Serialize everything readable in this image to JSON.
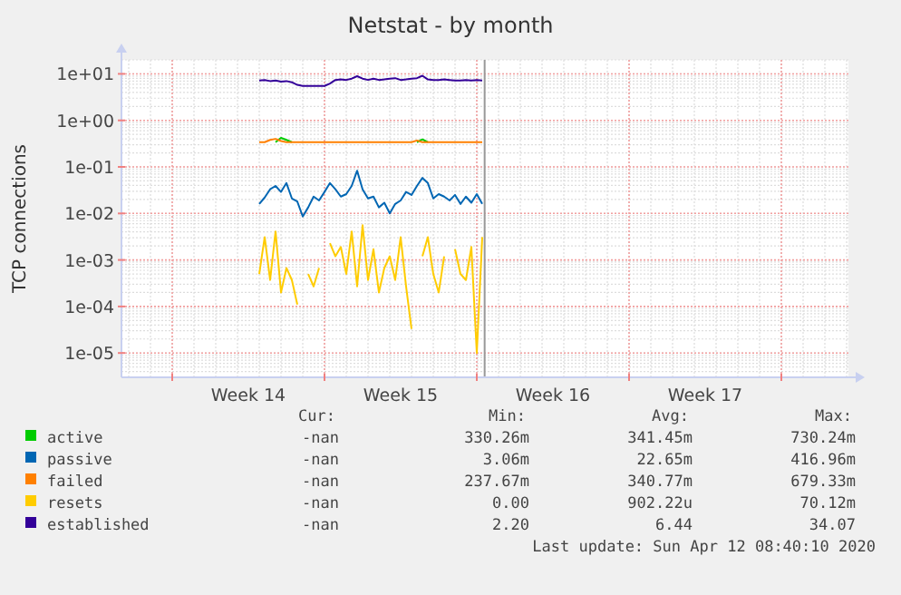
{
  "chart_data": {
    "type": "line",
    "title": "Netstat - by month",
    "ylabel": "TCP connections",
    "log": true,
    "grid": true,
    "legend": "bottom",
    "xlim": [
      "2020-03-26T16:00",
      "2020-04-29T02:00"
    ],
    "xticks": [
      {
        "value": "2020-03-29",
        "label": null
      },
      {
        "value": "2020-04-01T12:00",
        "label": "Week 14"
      },
      {
        "value": "2020-04-05",
        "label": null
      },
      {
        "value": "2020-04-08T12:00",
        "label": "Week 15"
      },
      {
        "value": "2020-04-12",
        "label": null
      },
      {
        "value": "2020-04-15T12:00",
        "label": "Week 16"
      },
      {
        "value": "2020-04-19",
        "label": null
      },
      {
        "value": "2020-04-22T12:00",
        "label": "Week 17"
      },
      {
        "value": "2020-04-26",
        "label": null
      }
    ],
    "ylim": [
      3e-06,
      20
    ],
    "yticks": [
      {
        "value": 10,
        "label": "1e+01"
      },
      {
        "value": 1,
        "label": "1e+00"
      },
      {
        "value": 0.1,
        "label": "1e-01"
      },
      {
        "value": 0.01,
        "label": "1e-02"
      },
      {
        "value": 0.001,
        "label": "1e-03"
      },
      {
        "value": 0.0001,
        "label": "1e-04"
      },
      {
        "value": 1e-05,
        "label": "1e-05"
      }
    ],
    "ref_lines": [
      {
        "axis": "x",
        "value": "2020-04-12T08:40",
        "color": "#999999"
      }
    ],
    "x": [
      "2020-04-02T00:00",
      "2020-04-02T06:00",
      "2020-04-02T12:00",
      "2020-04-02T18:00",
      "2020-04-03T00:00",
      "2020-04-03T06:00",
      "2020-04-03T12:00",
      "2020-04-03T18:00",
      "2020-04-04T00:00",
      "2020-04-04T06:00",
      "2020-04-04T12:00",
      "2020-04-04T18:00",
      "2020-04-05T00:00",
      "2020-04-05T06:00",
      "2020-04-05T12:00",
      "2020-04-05T18:00",
      "2020-04-06T00:00",
      "2020-04-06T06:00",
      "2020-04-06T12:00",
      "2020-04-06T18:00",
      "2020-04-07T00:00",
      "2020-04-07T06:00",
      "2020-04-07T12:00",
      "2020-04-07T18:00",
      "2020-04-08T00:00",
      "2020-04-08T06:00",
      "2020-04-08T12:00",
      "2020-04-08T18:00",
      "2020-04-09T00:00",
      "2020-04-09T06:00",
      "2020-04-09T12:00",
      "2020-04-09T18:00",
      "2020-04-10T00:00",
      "2020-04-10T06:00",
      "2020-04-10T12:00",
      "2020-04-10T18:00",
      "2020-04-11T00:00",
      "2020-04-11T06:00",
      "2020-04-11T12:00",
      "2020-04-11T18:00",
      "2020-04-12T00:00",
      "2020-04-12T06:00"
    ],
    "series": [
      {
        "name": "active",
        "color": "#00cc00",
        "values": [
          null,
          null,
          null,
          0.34,
          0.42,
          0.38,
          0.34,
          null,
          null,
          null,
          null,
          null,
          null,
          null,
          null,
          null,
          null,
          null,
          null,
          null,
          null,
          null,
          null,
          null,
          null,
          null,
          null,
          null,
          null,
          0.34,
          0.39,
          0.34,
          null,
          null,
          null,
          null,
          null,
          null,
          null,
          null,
          null,
          null
        ]
      },
      {
        "name": "passive",
        "color": "#0066b3",
        "values": [
          0.016,
          0.022,
          0.033,
          0.039,
          0.029,
          0.045,
          0.021,
          0.018,
          0.0086,
          0.0135,
          0.023,
          0.019,
          0.029,
          0.045,
          0.033,
          0.023,
          0.026,
          0.039,
          0.083,
          0.033,
          0.021,
          0.023,
          0.0135,
          0.017,
          0.01,
          0.016,
          0.019,
          0.029,
          0.025,
          0.039,
          0.058,
          0.045,
          0.021,
          0.026,
          0.023,
          0.019,
          0.025,
          0.016,
          0.023,
          0.017,
          0.026,
          0.016
        ]
      },
      {
        "name": "failed",
        "color": "#ff8000",
        "values": [
          0.34,
          0.34,
          0.38,
          0.4,
          0.36,
          0.34,
          0.34,
          0.34,
          0.34,
          0.34,
          0.34,
          0.34,
          0.34,
          0.34,
          0.34,
          0.34,
          0.34,
          0.34,
          0.34,
          0.34,
          0.34,
          0.34,
          0.34,
          0.34,
          0.34,
          0.34,
          0.34,
          0.34,
          0.34,
          0.37,
          0.34,
          0.34,
          0.34,
          0.34,
          0.34,
          0.34,
          0.34,
          0.34,
          0.34,
          0.34,
          0.34,
          0.34
        ]
      },
      {
        "name": "resets",
        "color": "#ffcc00",
        "values": [
          0.0005,
          0.0031,
          0.00037,
          0.0041,
          0.0002,
          0.00067,
          0.00037,
          0.00011,
          null,
          0.0005,
          0.00027,
          0.00067,
          null,
          0.0023,
          0.0012,
          0.0019,
          0.0005,
          0.0041,
          0.00027,
          0.0056,
          0.00037,
          0.0017,
          0.0002,
          0.00067,
          0.0012,
          0.00037,
          0.0031,
          0.00027,
          3.3e-05,
          null,
          0.0012,
          0.0031,
          0.0005,
          0.0002,
          0.0012,
          null,
          0.0017,
          0.0005,
          0.00037,
          0.0019,
          1e-05,
          0.0031
        ]
      },
      {
        "name": "established",
        "color": "#330099",
        "values": [
          7.2,
          7.4,
          7.0,
          7.2,
          6.8,
          7.0,
          6.6,
          5.8,
          5.5,
          5.5,
          5.5,
          5.5,
          5.5,
          6.2,
          7.4,
          7.6,
          7.4,
          7.9,
          8.9,
          7.9,
          7.4,
          7.9,
          7.4,
          7.6,
          7.9,
          8.1,
          7.4,
          7.6,
          7.9,
          8.1,
          9.1,
          7.6,
          7.4,
          7.4,
          7.6,
          7.4,
          7.2,
          7.2,
          7.4,
          7.2,
          7.4,
          7.2
        ]
      }
    ],
    "annotations": [
      "Cur:",
      "Min:",
      "Avg:",
      "Max:",
      "-nan",
      "330.26m",
      "341.45m",
      "730.24m",
      "-nan",
      "3.06m",
      "22.65m",
      "416.96m",
      "-nan",
      "237.67m",
      "340.77m",
      "679.33m",
      "-nan",
      "0.00",
      "902.22u",
      "70.12m",
      "-nan",
      "2.20",
      "6.44",
      "34.07",
      "Last update: Sun Apr 12 08:40:10 2020"
    ]
  }
}
